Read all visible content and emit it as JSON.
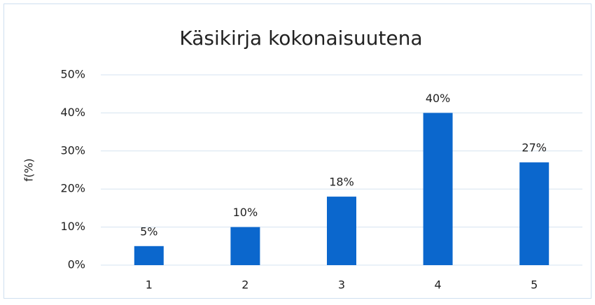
{
  "chart_data": {
    "type": "bar",
    "title": "Käsikirja kokonaisuutena",
    "y_label": "f(%)",
    "categories": [
      "1",
      "2",
      "3",
      "4",
      "5"
    ],
    "values": [
      5,
      10,
      18,
      40,
      27
    ],
    "value_labels": [
      "5%",
      "10%",
      "18%",
      "40%",
      "27%"
    ],
    "color": "#0b67cd",
    "ylim": [
      0,
      50
    ],
    "yticks": [
      {
        "value": 0,
        "label": "0%"
      },
      {
        "value": 10,
        "label": "10%"
      },
      {
        "value": 20,
        "label": "20%"
      },
      {
        "value": 30,
        "label": "30%"
      },
      {
        "value": 40,
        "label": "40%"
      },
      {
        "value": 50,
        "label": "50%"
      }
    ],
    "grid": true
  }
}
